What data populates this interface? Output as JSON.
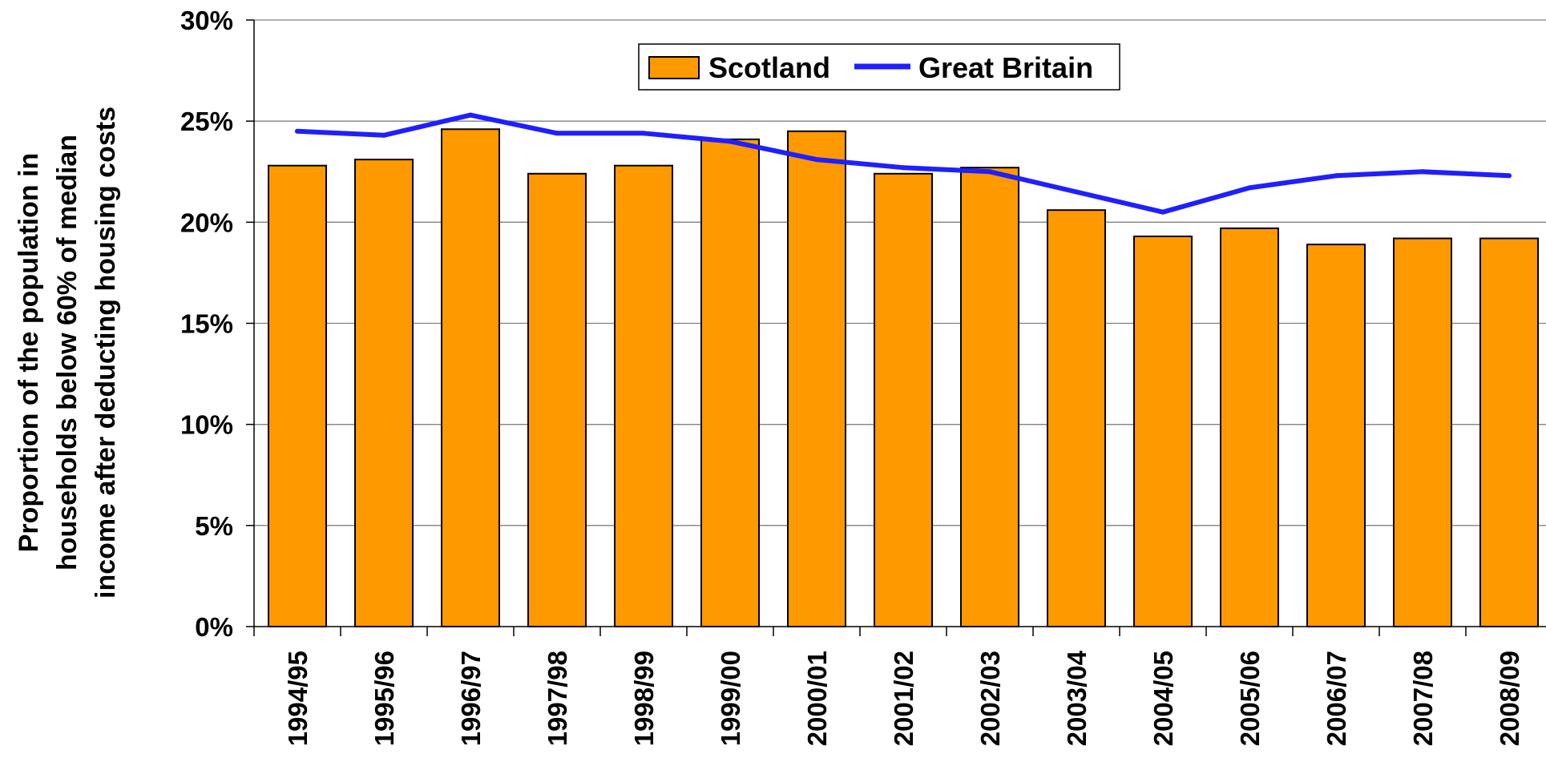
{
  "chart_data": {
    "type": "bar",
    "title": "",
    "xlabel": "",
    "ylabel_lines": [
      "Proportion of the population in",
      "households below 60% of median",
      "income after deducting housing costs"
    ],
    "ylim": [
      0,
      30
    ],
    "yticks": [
      "0%",
      "5%",
      "10%",
      "15%",
      "20%",
      "25%",
      "30%"
    ],
    "ytick_values": [
      0,
      5,
      10,
      15,
      20,
      25,
      30
    ],
    "grid": true,
    "legend_position": "top-center",
    "categories": [
      "1994/95",
      "1995/96",
      "1996/97",
      "1997/98",
      "1998/99",
      "1999/00",
      "2000/01",
      "2001/02",
      "2002/03",
      "2003/04",
      "2004/05",
      "2005/06",
      "2006/07",
      "2007/08",
      "2008/09"
    ],
    "series": [
      {
        "name": "Scotland",
        "type": "bar",
        "color": "#FF9900",
        "values": [
          22.8,
          23.1,
          24.6,
          22.4,
          22.8,
          24.1,
          24.5,
          22.4,
          22.7,
          20.6,
          19.3,
          19.7,
          18.9,
          19.2,
          19.2
        ]
      },
      {
        "name": "Great Britain",
        "type": "line",
        "color": "#1F1FFF",
        "values": [
          24.5,
          24.3,
          25.3,
          24.4,
          24.4,
          24.0,
          23.1,
          22.7,
          22.5,
          21.5,
          20.5,
          21.7,
          22.3,
          22.5,
          22.3
        ]
      }
    ]
  }
}
